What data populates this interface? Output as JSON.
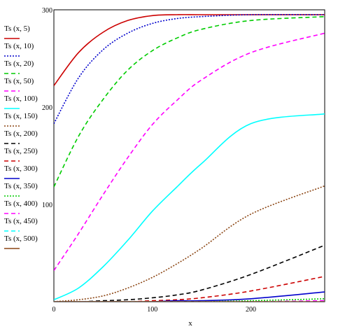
{
  "chart_data": {
    "type": "line",
    "title": "",
    "xlabel": "x",
    "ylabel": "",
    "xlim": [
      0,
      275
    ],
    "ylim": [
      0,
      300
    ],
    "x_ticks": [
      0,
      100,
      200
    ],
    "y_ticks": [
      100,
      200,
      300
    ],
    "grid": false,
    "legend_position": "left",
    "series": [
      {
        "name": "Ts (x, 5)",
        "color": "#cc0000",
        "dash": "solid",
        "x": [
          0,
          25,
          50,
          75,
          100,
          125,
          150,
          200,
          275
        ],
        "y": [
          222,
          256,
          277,
          289,
          294,
          295,
          295,
          295,
          295
        ]
      },
      {
        "name": "Ts (x, 10)",
        "color": "#0000cc",
        "dash": "dotted",
        "x": [
          0,
          25,
          50,
          75,
          100,
          125,
          150,
          200,
          275
        ],
        "y": [
          183,
          230,
          259,
          276,
          286,
          291,
          293,
          295,
          295
        ]
      },
      {
        "name": "Ts (x, 20)",
        "color": "#00cc00",
        "dash": "dashed",
        "x": [
          0,
          25,
          50,
          75,
          100,
          125,
          150,
          200,
          275
        ],
        "y": [
          118,
          170,
          208,
          238,
          258,
          271,
          280,
          289,
          293
        ]
      },
      {
        "name": "Ts (x, 50)",
        "color": "#ff00ff",
        "dash": "dashed",
        "x": [
          0,
          25,
          50,
          75,
          100,
          125,
          150,
          200,
          275
        ],
        "y": [
          32,
          70,
          110,
          148,
          182,
          207,
          228,
          256,
          276
        ]
      },
      {
        "name": "Ts (x, 100)",
        "color": "#00ffff",
        "dash": "solid",
        "x": [
          0,
          25,
          50,
          75,
          100,
          125,
          150,
          200,
          275
        ],
        "y": [
          2,
          14,
          36,
          63,
          93,
          118,
          142,
          183,
          193
        ]
      },
      {
        "name": "Ts (x, 150)",
        "color": "#8b4513",
        "dash": "dotted",
        "x": [
          0,
          25,
          50,
          75,
          100,
          125,
          150,
          200,
          275
        ],
        "y": [
          0,
          2,
          6,
          14,
          25,
          39,
          55,
          90,
          119
        ]
      },
      {
        "name": "Ts (x, 200)",
        "color": "#000000",
        "dash": "dashed",
        "x": [
          0,
          25,
          50,
          75,
          100,
          125,
          150,
          200,
          275
        ],
        "y": [
          0,
          0,
          1,
          2,
          4,
          7,
          12,
          28,
          58
        ]
      },
      {
        "name": "Ts (x, 250)",
        "color": "#cc0000",
        "dash": "dashed",
        "x": [
          0,
          25,
          50,
          75,
          100,
          125,
          150,
          200,
          275
        ],
        "y": [
          0,
          0,
          0,
          0,
          1,
          2,
          4,
          11,
          26
        ]
      },
      {
        "name": "Ts (x, 300)",
        "color": "#0000cc",
        "dash": "solid",
        "x": [
          0,
          25,
          50,
          75,
          100,
          125,
          150,
          200,
          275
        ],
        "y": [
          0,
          0,
          0,
          0,
          0,
          1,
          1,
          3,
          10
        ]
      },
      {
        "name": "Ts (x, 350)",
        "color": "#00cc00",
        "dash": "dotted",
        "x": [
          0,
          25,
          50,
          75,
          100,
          125,
          150,
          200,
          275
        ],
        "y": [
          0,
          0,
          0,
          0,
          0,
          0,
          0,
          1,
          3
        ]
      },
      {
        "name": "Ts (x, 400)",
        "color": "#ff00ff",
        "dash": "dashed",
        "x": [
          0,
          25,
          50,
          75,
          100,
          125,
          150,
          200,
          275
        ],
        "y": [
          0,
          0,
          0,
          0,
          0,
          0,
          0,
          0,
          1
        ]
      },
      {
        "name": "Ts (x, 450)",
        "color": "#00ffff",
        "dash": "dashed",
        "x": [
          0,
          25,
          50,
          75,
          100,
          125,
          150,
          200,
          275
        ],
        "y": [
          0,
          0,
          0,
          0,
          0,
          0,
          0,
          0,
          0
        ]
      },
      {
        "name": "Ts (x, 500)",
        "color": "#8b4513",
        "dash": "solid",
        "x": [
          0,
          25,
          50,
          75,
          100,
          125,
          150,
          200,
          275
        ],
        "y": [
          0,
          0,
          0,
          0,
          0,
          0,
          0,
          0,
          0
        ]
      }
    ]
  }
}
